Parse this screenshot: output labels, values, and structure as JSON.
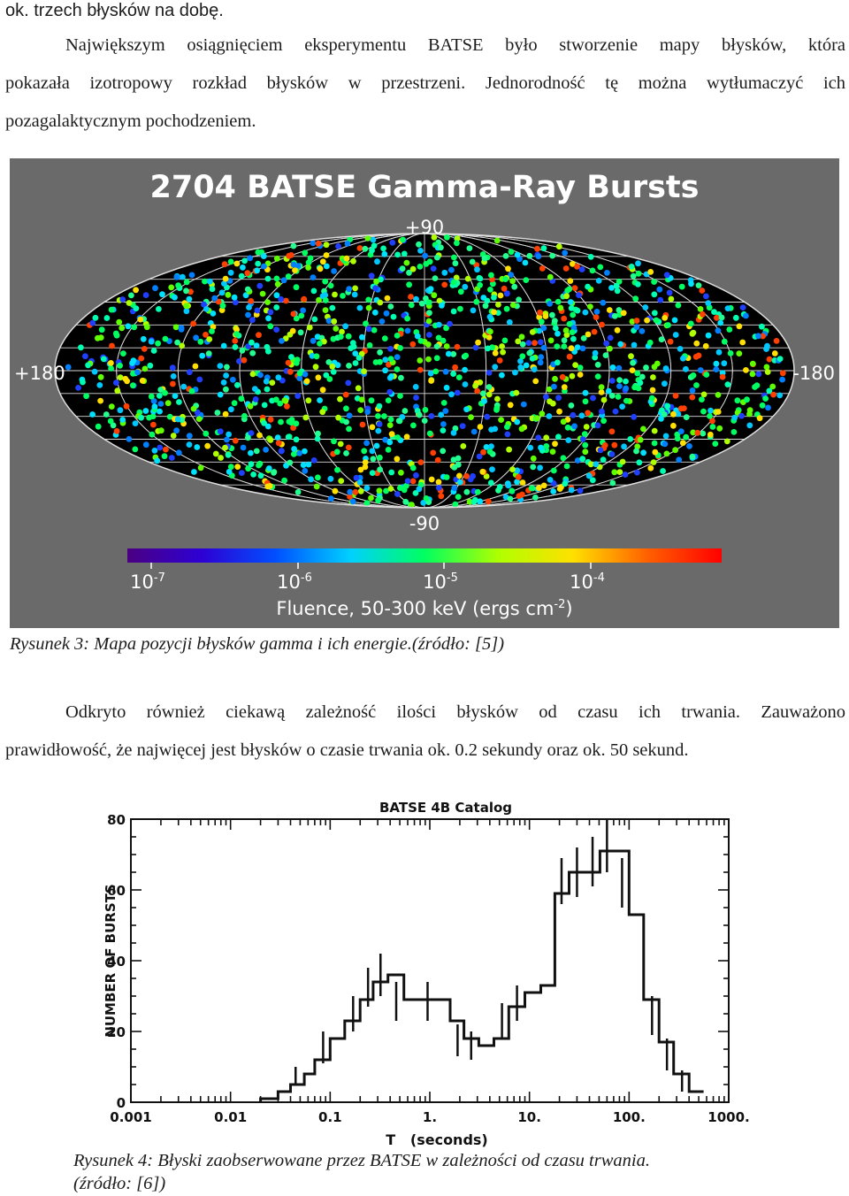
{
  "top_line": "ok. trzech błysków na dobę.",
  "paragraph1": {
    "first_line": "Największym osiągnięciem eksperymentu BATSE było stworzenie mapy błysków, która",
    "second_line": "pokazała izotropowy rozkład błysków w przestrzeni. Jednorodność tę można wytłumaczyć ich",
    "last_line": "pozagalaktycznym pochodzeniem."
  },
  "figure3": {
    "title": "2704 BATSE Gamma-Ray Bursts",
    "label_top": "+90",
    "label_bottom": "-90",
    "label_left": "+180",
    "label_right": "-180",
    "colorbar_ticks": [
      {
        "base": "10",
        "exp": "-7"
      },
      {
        "base": "10",
        "exp": "-6"
      },
      {
        "base": "10",
        "exp": "-5"
      },
      {
        "base": "10",
        "exp": "-4"
      }
    ],
    "colorbar_label_main": "Fluence, 50-300 keV (ergs cm",
    "colorbar_label_exp": "-2",
    "colorbar_label_end": ")",
    "background_color": "#6a6a6a",
    "sky_color": "#000000",
    "colorbar_colors": [
      "#4b0082",
      "#2d00d4",
      "#0050ff",
      "#00d0ff",
      "#00ff60",
      "#b0ff00",
      "#ffe000",
      "#ff6000",
      "#ff0000"
    ]
  },
  "caption3": "Rysunek 3: Mapa pozycji błysków gamma i ich energie.(źródło: [5])",
  "paragraph2": {
    "first_line": "Odkryto również ciekawą zależność ilości błysków od czasu ich trwania. Zauważono",
    "last_line": "prawidłowość, że najwięcej jest błysków o czasie trwania ok. 0.2 sekundy oraz ok. 50 sekund."
  },
  "chart_data": {
    "type": "line",
    "title": "BATSE 4B Catalog",
    "xlabel": "T   (seconds)",
    "ylabel": "NUMBER OF BURSTS",
    "x_scale": "log",
    "xlim": [
      0.001,
      1000
    ],
    "ylim": [
      0,
      80
    ],
    "x_ticks": [
      "0.001",
      "0.01",
      "0.1",
      "1.",
      "10.",
      "100.",
      "1000."
    ],
    "y_ticks": [
      "0",
      "20",
      "40",
      "60",
      "80"
    ],
    "histogram_steps": {
      "bin_edges": [
        0.02,
        0.03,
        0.04,
        0.055,
        0.07,
        0.1,
        0.14,
        0.2,
        0.27,
        0.38,
        0.55,
        0.8,
        1.1,
        1.6,
        2.2,
        3.1,
        4.4,
        6.2,
        9,
        13,
        18,
        25,
        36,
        51,
        72,
        100,
        140,
        200,
        280,
        400
      ],
      "counts": [
        1,
        3,
        5,
        8,
        12,
        18,
        23,
        29,
        34,
        36,
        29,
        29,
        29,
        23,
        18,
        16,
        18,
        27,
        31,
        33,
        59,
        65,
        65,
        71,
        71,
        53,
        29,
        17,
        8,
        3
      ]
    },
    "error_bars": [
      {
        "x": 0.045,
        "y": 7,
        "lo": 5,
        "hi": 10
      },
      {
        "x": 0.085,
        "y": 15,
        "lo": 11,
        "hi": 20
      },
      {
        "x": 0.17,
        "y": 25,
        "lo": 20,
        "hi": 30
      },
      {
        "x": 0.24,
        "y": 33,
        "lo": 27,
        "hi": 38
      },
      {
        "x": 0.32,
        "y": 36,
        "lo": 30,
        "hi": 42
      },
      {
        "x": 0.46,
        "y": 29,
        "lo": 23,
        "hi": 34
      },
      {
        "x": 0.95,
        "y": 29,
        "lo": 23,
        "hi": 34
      },
      {
        "x": 1.9,
        "y": 18,
        "lo": 13,
        "hi": 22
      },
      {
        "x": 2.6,
        "y": 16,
        "lo": 12,
        "hi": 20
      },
      {
        "x": 5.3,
        "y": 23,
        "lo": 18,
        "hi": 28
      },
      {
        "x": 7.5,
        "y": 28,
        "lo": 23,
        "hi": 33
      },
      {
        "x": 21,
        "y": 63,
        "lo": 56,
        "hi": 69
      },
      {
        "x": 30,
        "y": 65,
        "lo": 58,
        "hi": 72
      },
      {
        "x": 43,
        "y": 68,
        "lo": 61,
        "hi": 75
      },
      {
        "x": 60,
        "y": 72,
        "lo": 65,
        "hi": 80
      },
      {
        "x": 85,
        "y": 62,
        "lo": 55,
        "hi": 69
      },
      {
        "x": 170,
        "y": 24,
        "lo": 19,
        "hi": 30
      },
      {
        "x": 240,
        "y": 13,
        "lo": 9,
        "hi": 18
      },
      {
        "x": 340,
        "y": 6,
        "lo": 3,
        "hi": 9
      }
    ]
  },
  "caption4": {
    "line1": "Rysunek 4: Błyski zaobserwowane przez BATSE w zależności od czasu trwania.",
    "line2": "(źródło: [6])"
  }
}
